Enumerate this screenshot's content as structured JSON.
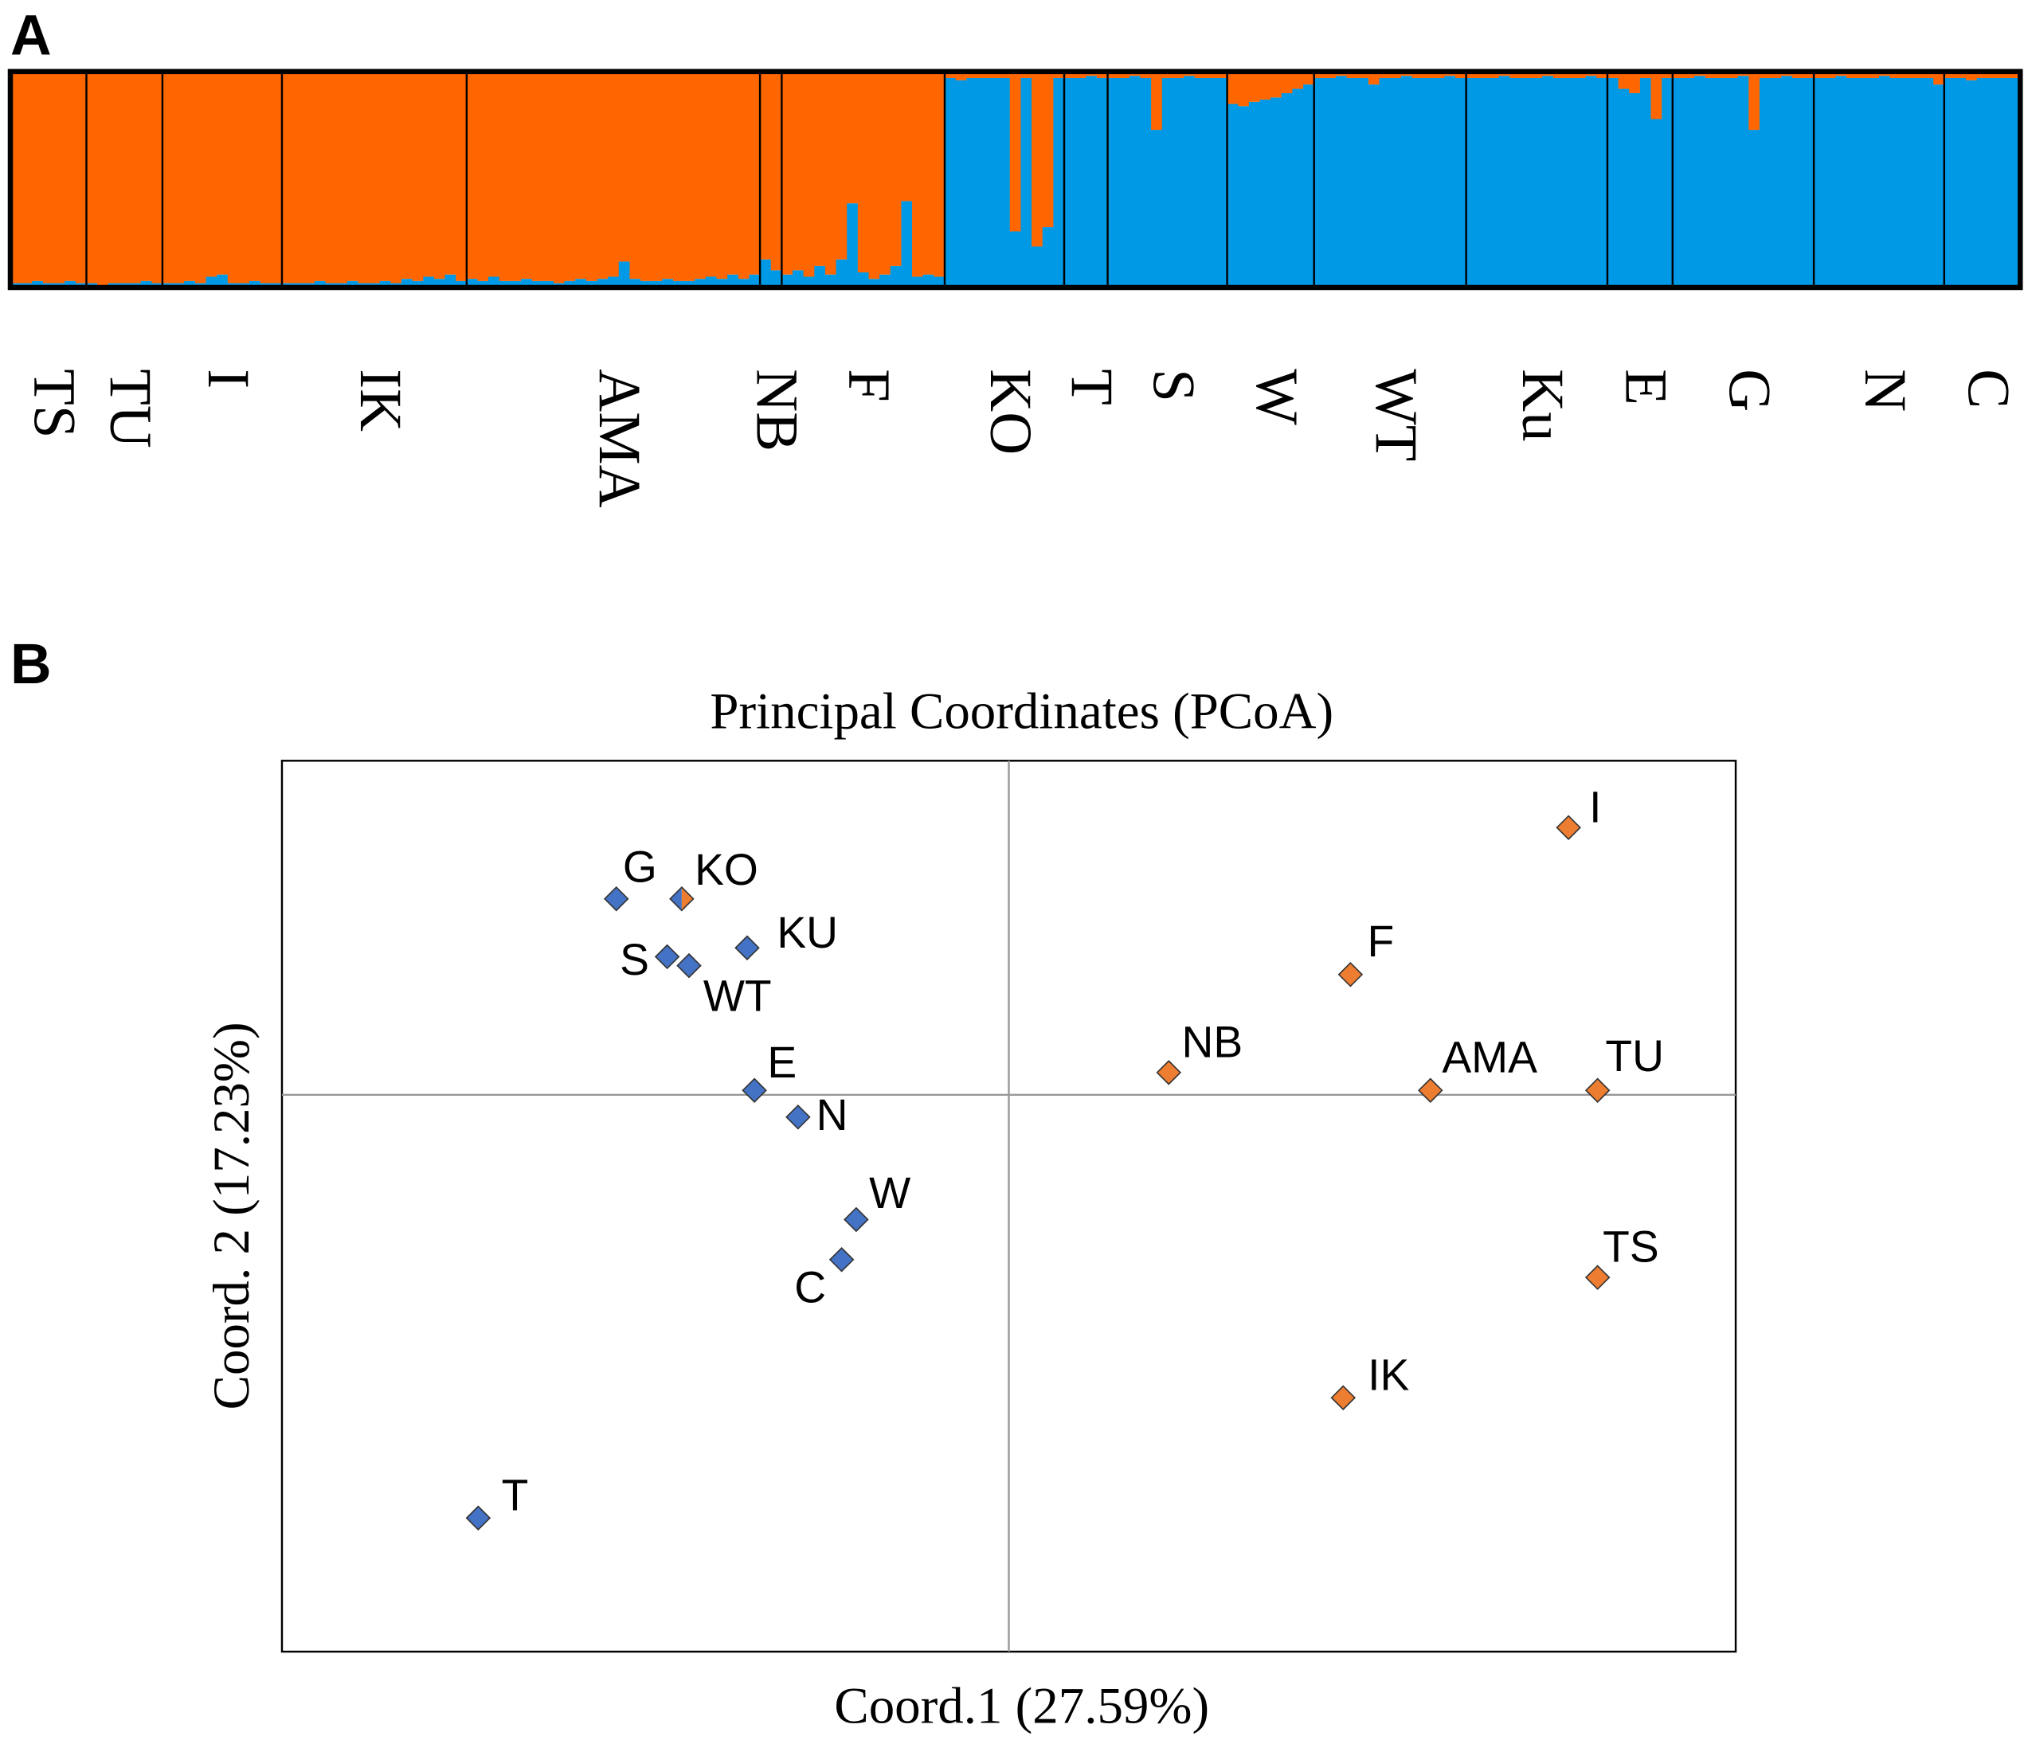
{
  "chart_data": [
    {
      "type": "structure",
      "panel": "A",
      "ylim": [
        0,
        1
      ],
      "colors": [
        "#0099e6",
        "#ff6600"
      ],
      "groups": [
        {
          "label": "TS",
          "values": [
            [
              0.02,
              0.98
            ],
            [
              0.02,
              0.98
            ],
            [
              0.03,
              0.97
            ],
            [
              0.02,
              0.98
            ],
            [
              0.02,
              0.98
            ],
            [
              0.03,
              0.97
            ],
            [
              0.02,
              0.98
            ]
          ]
        },
        {
          "label": "TU",
          "values": [
            [
              0.02,
              0.98
            ],
            [
              0.01,
              0.99
            ],
            [
              0.02,
              0.98
            ],
            [
              0.02,
              0.98
            ],
            [
              0.02,
              0.98
            ],
            [
              0.03,
              0.97
            ],
            [
              0.02,
              0.98
            ]
          ]
        },
        {
          "label": "I",
          "values": [
            [
              0.02,
              0.98
            ],
            [
              0.02,
              0.98
            ],
            [
              0.03,
              0.97
            ],
            [
              0.02,
              0.98
            ],
            [
              0.05,
              0.95
            ],
            [
              0.06,
              0.94
            ],
            [
              0.02,
              0.98
            ],
            [
              0.02,
              0.98
            ],
            [
              0.03,
              0.97
            ],
            [
              0.02,
              0.98
            ],
            [
              0.02,
              0.98
            ]
          ]
        },
        {
          "label": "IK",
          "values": [
            [
              0.02,
              0.98
            ],
            [
              0.02,
              0.98
            ],
            [
              0.02,
              0.98
            ],
            [
              0.03,
              0.97
            ],
            [
              0.02,
              0.98
            ],
            [
              0.02,
              0.98
            ],
            [
              0.03,
              0.97
            ],
            [
              0.02,
              0.98
            ],
            [
              0.02,
              0.98
            ],
            [
              0.03,
              0.97
            ],
            [
              0.02,
              0.98
            ],
            [
              0.04,
              0.96
            ],
            [
              0.03,
              0.97
            ],
            [
              0.05,
              0.95
            ],
            [
              0.04,
              0.96
            ],
            [
              0.06,
              0.94
            ],
            [
              0.03,
              0.97
            ]
          ]
        },
        {
          "label": "AMA",
          "values": [
            [
              0.04,
              0.96
            ],
            [
              0.03,
              0.97
            ],
            [
              0.05,
              0.95
            ],
            [
              0.03,
              0.97
            ],
            [
              0.03,
              0.97
            ],
            [
              0.04,
              0.96
            ],
            [
              0.03,
              0.97
            ],
            [
              0.03,
              0.97
            ],
            [
              0.02,
              0.98
            ],
            [
              0.03,
              0.97
            ],
            [
              0.04,
              0.96
            ],
            [
              0.03,
              0.97
            ],
            [
              0.04,
              0.96
            ],
            [
              0.05,
              0.95
            ],
            [
              0.12,
              0.88
            ],
            [
              0.04,
              0.96
            ],
            [
              0.03,
              0.97
            ],
            [
              0.03,
              0.97
            ],
            [
              0.04,
              0.96
            ],
            [
              0.03,
              0.97
            ],
            [
              0.03,
              0.97
            ],
            [
              0.04,
              0.96
            ],
            [
              0.05,
              0.95
            ],
            [
              0.04,
              0.96
            ],
            [
              0.06,
              0.94
            ],
            [
              0.04,
              0.96
            ],
            [
              0.06,
              0.94
            ]
          ]
        },
        {
          "label": "NB",
          "values": [
            [
              0.13,
              0.87
            ],
            [
              0.08,
              0.92
            ]
          ]
        },
        {
          "label": "F",
          "values": [
            [
              0.06,
              0.94
            ],
            [
              0.08,
              0.92
            ],
            [
              0.05,
              0.95
            ],
            [
              0.1,
              0.9
            ],
            [
              0.06,
              0.94
            ],
            [
              0.13,
              0.87
            ],
            [
              0.39,
              0.61
            ],
            [
              0.07,
              0.93
            ],
            [
              0.04,
              0.96
            ],
            [
              0.06,
              0.94
            ],
            [
              0.1,
              0.9
            ],
            [
              0.4,
              0.6
            ],
            [
              0.05,
              0.95
            ],
            [
              0.06,
              0.94
            ],
            [
              0.05,
              0.95
            ]
          ]
        },
        {
          "label": "KO",
          "values": [
            [
              0.97,
              0.03
            ],
            [
              0.96,
              0.04
            ],
            [
              0.97,
              0.03
            ],
            [
              0.97,
              0.03
            ],
            [
              0.97,
              0.03
            ],
            [
              0.97,
              0.03
            ],
            [
              0.26,
              0.74
            ],
            [
              0.97,
              0.03
            ],
            [
              0.19,
              0.81
            ],
            [
              0.28,
              0.72
            ],
            [
              0.97,
              0.03
            ]
          ]
        },
        {
          "label": "T",
          "values": [
            [
              0.97,
              0.03
            ],
            [
              0.97,
              0.03
            ],
            [
              0.98,
              0.02
            ],
            [
              0.97,
              0.03
            ]
          ]
        },
        {
          "label": "S",
          "values": [
            [
              0.97,
              0.03
            ],
            [
              0.97,
              0.03
            ],
            [
              0.98,
              0.02
            ],
            [
              0.97,
              0.03
            ],
            [
              0.73,
              0.27
            ],
            [
              0.97,
              0.03
            ],
            [
              0.97,
              0.03
            ],
            [
              0.98,
              0.02
            ],
            [
              0.97,
              0.03
            ],
            [
              0.97,
              0.03
            ],
            [
              0.97,
              0.03
            ]
          ]
        },
        {
          "label": "W",
          "values": [
            [
              0.85,
              0.15
            ],
            [
              0.84,
              0.16
            ],
            [
              0.86,
              0.14
            ],
            [
              0.87,
              0.13
            ],
            [
              0.88,
              0.12
            ],
            [
              0.9,
              0.1
            ],
            [
              0.92,
              0.08
            ],
            [
              0.94,
              0.06
            ]
          ]
        },
        {
          "label": "WT",
          "values": [
            [
              0.97,
              0.03
            ],
            [
              0.97,
              0.03
            ],
            [
              0.98,
              0.02
            ],
            [
              0.97,
              0.03
            ],
            [
              0.97,
              0.03
            ],
            [
              0.94,
              0.06
            ],
            [
              0.97,
              0.03
            ],
            [
              0.97,
              0.03
            ],
            [
              0.98,
              0.02
            ],
            [
              0.97,
              0.03
            ],
            [
              0.97,
              0.03
            ],
            [
              0.97,
              0.03
            ],
            [
              0.98,
              0.02
            ],
            [
              0.97,
              0.03
            ]
          ]
        },
        {
          "label": "Ku",
          "values": [
            [
              0.97,
              0.03
            ],
            [
              0.97,
              0.03
            ],
            [
              0.97,
              0.03
            ],
            [
              0.98,
              0.02
            ],
            [
              0.97,
              0.03
            ],
            [
              0.97,
              0.03
            ],
            [
              0.97,
              0.03
            ],
            [
              0.98,
              0.02
            ],
            [
              0.97,
              0.03
            ],
            [
              0.97,
              0.03
            ],
            [
              0.97,
              0.03
            ],
            [
              0.98,
              0.02
            ],
            [
              0.97,
              0.03
            ]
          ]
        },
        {
          "label": "E",
          "values": [
            [
              0.97,
              0.03
            ],
            [
              0.92,
              0.08
            ],
            [
              0.9,
              0.1
            ],
            [
              0.97,
              0.03
            ],
            [
              0.78,
              0.22
            ],
            [
              0.97,
              0.03
            ]
          ]
        },
        {
          "label": "G",
          "values": [
            [
              0.97,
              0.03
            ],
            [
              0.97,
              0.03
            ],
            [
              0.98,
              0.02
            ],
            [
              0.97,
              0.03
            ],
            [
              0.97,
              0.03
            ],
            [
              0.97,
              0.03
            ],
            [
              0.98,
              0.02
            ],
            [
              0.73,
              0.27
            ],
            [
              0.97,
              0.03
            ],
            [
              0.97,
              0.03
            ],
            [
              0.98,
              0.02
            ],
            [
              0.97,
              0.03
            ],
            [
              0.97,
              0.03
            ]
          ]
        },
        {
          "label": "N",
          "values": [
            [
              0.97,
              0.03
            ],
            [
              0.97,
              0.03
            ],
            [
              0.98,
              0.02
            ],
            [
              0.97,
              0.03
            ],
            [
              0.97,
              0.03
            ],
            [
              0.97,
              0.03
            ],
            [
              0.98,
              0.02
            ],
            [
              0.97,
              0.03
            ],
            [
              0.97,
              0.03
            ],
            [
              0.97,
              0.03
            ],
            [
              0.97,
              0.03
            ],
            [
              0.94,
              0.06
            ]
          ]
        },
        {
          "label": "C",
          "values": [
            [
              0.97,
              0.03
            ],
            [
              0.97,
              0.03
            ],
            [
              0.96,
              0.04
            ],
            [
              0.97,
              0.03
            ],
            [
              0.97,
              0.03
            ],
            [
              0.97,
              0.03
            ],
            [
              0.97,
              0.03
            ]
          ]
        }
      ]
    },
    {
      "type": "scatter",
      "panel": "B",
      "title": "Principal Coordinates (PCoA)",
      "xlabel": "Coord.1 (27.59%)",
      "ylabel": "Coord. 2 (17.23%)",
      "xlim": [
        -1,
        1
      ],
      "ylim": [
        -1.25,
        0.75
      ],
      "xticks": [
        0
      ],
      "yticks": [
        0
      ],
      "grid": true,
      "labels": [
        "G",
        "KO",
        "KU",
        "S",
        "WT",
        "E",
        "N",
        "W",
        "C",
        "T",
        "I",
        "F",
        "NB",
        "AMA",
        "TU",
        "TS",
        "IK"
      ],
      "x": [
        -0.54,
        -0.45,
        -0.36,
        -0.47,
        -0.44,
        -0.35,
        -0.29,
        -0.21,
        -0.23,
        -0.73,
        0.77,
        0.47,
        0.22,
        0.58,
        0.81,
        0.81,
        0.46
      ],
      "y": [
        0.44,
        0.44,
        0.33,
        0.31,
        0.29,
        0.01,
        -0.05,
        -0.28,
        -0.37,
        -0.95,
        0.6,
        0.27,
        0.05,
        0.01,
        0.01,
        -0.41,
        -0.68
      ],
      "point_colors": [
        "#4472c4",
        [
          "#4472c4",
          "#ed7d31"
        ],
        "#4472c4",
        "#4472c4",
        "#4472c4",
        "#4472c4",
        "#4472c4",
        "#4472c4",
        "#4472c4",
        "#4472c4",
        "#ed7d31",
        "#ed7d31",
        "#ed7d31",
        "#ed7d31",
        "#ed7d31",
        "#ed7d31",
        "#ed7d31"
      ]
    }
  ]
}
